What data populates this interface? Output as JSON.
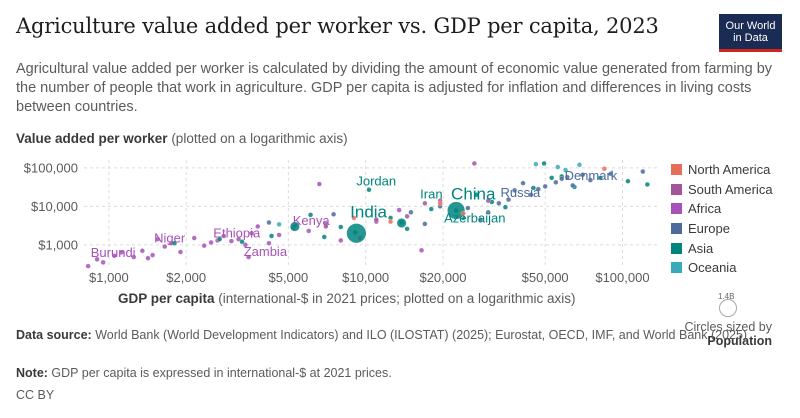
{
  "header": {
    "title": "Agriculture value added per worker vs. GDP per capita, 2023",
    "subtitle": "Agricultural value added per worker is calculated by dividing the amount of economic value generated from farming by the number of people that work in agriculture. GDP per capita is adjusted for inflation and differences in living costs between countries.",
    "logo_line1": "Our World",
    "logo_line2": "in Data"
  },
  "axes": {
    "y_label_bold": "Value added per worker",
    "y_label_rest": " (plotted on a logarithmic axis)",
    "x_label_bold": "GDP per capita",
    "x_label_rest": " (international-$ in 2021 prices; plotted on a logarithmic axis)"
  },
  "size_legend": {
    "value": "1.4B",
    "caption_line1": "Circles sized by",
    "caption_line2": "Population"
  },
  "footer": {
    "source_label": "Data source:",
    "source_text": " World Bank (World Development Indicators) and ILO (ILOSTAT) (2025); Eurostat, OECD, IMF, and World Bank (2025)",
    "note_label": "Note:",
    "note_text": " GDP per capita is expressed in international-$ at 2021 prices.",
    "license": "CC BY"
  },
  "chart_data": {
    "type": "scatter",
    "x_scale": "log",
    "y_scale": "log",
    "xlim": [
      800,
      140000
    ],
    "ylim": [
      250,
      160000
    ],
    "x_ticks": [
      {
        "v": 1000,
        "label": "$1,000"
      },
      {
        "v": 2000,
        "label": "$2,000"
      },
      {
        "v": 5000,
        "label": "$5,000"
      },
      {
        "v": 10000,
        "label": "$10,000"
      },
      {
        "v": 20000,
        "label": "$20,000"
      },
      {
        "v": 50000,
        "label": "$50,000"
      },
      {
        "v": 100000,
        "label": "$100,000"
      }
    ],
    "y_ticks": [
      {
        "v": 1000,
        "label": "$1,000"
      },
      {
        "v": 10000,
        "label": "$10,000"
      },
      {
        "v": 100000,
        "label": "$100,000"
      }
    ],
    "grid": true,
    "legend_position": "right",
    "colors": {
      "North America": "#e56e5a",
      "South America": "#a2559c",
      "Africa": "#a652ba",
      "Europe": "#4c6a9c",
      "Asia": "#00847e",
      "Oceania": "#38aaba"
    },
    "legend": [
      "North America",
      "South America",
      "Africa",
      "Europe",
      "Asia",
      "Oceania"
    ],
    "series": [
      {
        "name": "Africa",
        "points": [
          {
            "x": 830,
            "y": 280
          },
          {
            "x": 900,
            "y": 420
          },
          {
            "x": 950,
            "y": 350
          },
          {
            "x": 1050,
            "y": 520
          },
          {
            "x": 1120,
            "y": 640
          },
          {
            "x": 1250,
            "y": 480
          },
          {
            "x": 1350,
            "y": 700
          },
          {
            "x": 1420,
            "y": 450
          },
          {
            "x": 1480,
            "y": 540
          },
          {
            "x": 1550,
            "y": 1400
          },
          {
            "x": 1650,
            "y": 900
          },
          {
            "x": 1750,
            "y": 1100
          },
          {
            "x": 1900,
            "y": 650
          },
          {
            "x": 2150,
            "y": 1500
          },
          {
            "x": 2350,
            "y": 950
          },
          {
            "x": 2500,
            "y": 1150
          },
          {
            "x": 2650,
            "y": 1300
          },
          {
            "x": 2800,
            "y": 1700
          },
          {
            "x": 3000,
            "y": 1250
          },
          {
            "x": 3200,
            "y": 1400
          },
          {
            "x": 3400,
            "y": 1000
          },
          {
            "x": 3600,
            "y": 2000
          },
          {
            "x": 3800,
            "y": 3000
          },
          {
            "x": 4200,
            "y": 1100
          },
          {
            "x": 4600,
            "y": 1800
          },
          {
            "x": 5200,
            "y": 2600
          },
          {
            "x": 6000,
            "y": 2300
          },
          {
            "x": 7000,
            "y": 3500
          },
          {
            "x": 8000,
            "y": 1300
          },
          {
            "x": 9500,
            "y": 1500
          },
          {
            "x": 11000,
            "y": 4000
          },
          {
            "x": 13500,
            "y": 8000
          },
          {
            "x": 16500,
            "y": 720
          },
          {
            "x": 3500,
            "y": 480
          },
          {
            "x": 6600,
            "y": 38000
          }
        ]
      },
      {
        "name": "Asia",
        "points": [
          {
            "x": 1800,
            "y": 1100
          },
          {
            "x": 2700,
            "y": 1400
          },
          {
            "x": 3300,
            "y": 1200
          },
          {
            "x": 4300,
            "y": 1700
          },
          {
            "x": 5300,
            "y": 3200
          },
          {
            "x": 6100,
            "y": 6000
          },
          {
            "x": 6900,
            "y": 1600
          },
          {
            "x": 8000,
            "y": 2900
          },
          {
            "x": 9100,
            "y": 2100
          },
          {
            "x": 10300,
            "y": 27000
          },
          {
            "x": 12500,
            "y": 5000
          },
          {
            "x": 13800,
            "y": 3800
          },
          {
            "x": 14500,
            "y": 2600
          },
          {
            "x": 18000,
            "y": 8500
          },
          {
            "x": 22500,
            "y": 7800
          },
          {
            "x": 24000,
            "y": 5000
          },
          {
            "x": 27000,
            "y": 20000
          },
          {
            "x": 31000,
            "y": 13000
          },
          {
            "x": 35000,
            "y": 9500
          },
          {
            "x": 45000,
            "y": 30000
          },
          {
            "x": 49500,
            "y": 130000
          },
          {
            "x": 53000,
            "y": 55000
          },
          {
            "x": 58000,
            "y": 60000
          },
          {
            "x": 65000,
            "y": 32000
          },
          {
            "x": 82000,
            "y": 55000
          },
          {
            "x": 105000,
            "y": 45000
          },
          {
            "x": 125000,
            "y": 37000
          },
          {
            "x": 5300,
            "y": 3000,
            "s": 5
          },
          {
            "x": 9200,
            "y": 2000,
            "s": 10
          },
          {
            "x": 13800,
            "y": 3700,
            "s": 5
          },
          {
            "x": 22500,
            "y": 7800,
            "s": 9
          }
        ]
      },
      {
        "name": "Europe",
        "points": [
          {
            "x": 15000,
            "y": 7000
          },
          {
            "x": 17000,
            "y": 3500
          },
          {
            "x": 19500,
            "y": 10000
          },
          {
            "x": 25000,
            "y": 9000
          },
          {
            "x": 28000,
            "y": 4500
          },
          {
            "x": 30000,
            "y": 7000
          },
          {
            "x": 33000,
            "y": 12000
          },
          {
            "x": 36000,
            "y": 15000
          },
          {
            "x": 38000,
            "y": 26000
          },
          {
            "x": 41000,
            "y": 40000
          },
          {
            "x": 44000,
            "y": 20000
          },
          {
            "x": 47000,
            "y": 28000
          },
          {
            "x": 50000,
            "y": 33000
          },
          {
            "x": 55000,
            "y": 42000
          },
          {
            "x": 58000,
            "y": 52000
          },
          {
            "x": 61000,
            "y": 57000
          },
          {
            "x": 64000,
            "y": 35000
          },
          {
            "x": 70000,
            "y": 66000
          },
          {
            "x": 75000,
            "y": 48000
          },
          {
            "x": 90000,
            "y": 70000
          },
          {
            "x": 120000,
            "y": 80000
          },
          {
            "x": 4200,
            "y": 3800
          },
          {
            "x": 7500,
            "y": 6200
          }
        ]
      },
      {
        "name": "South America",
        "points": [
          {
            "x": 7000,
            "y": 3000
          },
          {
            "x": 11000,
            "y": 4500
          },
          {
            "x": 14500,
            "y": 5500
          },
          {
            "x": 17000,
            "y": 12000
          },
          {
            "x": 19500,
            "y": 14000
          },
          {
            "x": 26500,
            "y": 130000
          },
          {
            "x": 30000,
            "y": 14000
          }
        ]
      },
      {
        "name": "North America",
        "points": [
          {
            "x": 9000,
            "y": 5000
          },
          {
            "x": 12500,
            "y": 4000
          },
          {
            "x": 19500,
            "y": 12000
          },
          {
            "x": 24000,
            "y": 6500
          },
          {
            "x": 85000,
            "y": 95000
          }
        ]
      },
      {
        "name": "Oceania",
        "points": [
          {
            "x": 4600,
            "y": 3400
          },
          {
            "x": 56000,
            "y": 105000
          },
          {
            "x": 60000,
            "y": 88000
          },
          {
            "x": 68000,
            "y": 120000
          },
          {
            "x": 46000,
            "y": 125000
          }
        ]
      }
    ],
    "labels": [
      {
        "text": "Burundi",
        "x": 850,
        "y": 480,
        "region": "Africa",
        "size": 13
      },
      {
        "text": "Niger",
        "x": 1500,
        "y": 1150,
        "region": "Africa",
        "size": 13
      },
      {
        "text": "Ethiopia",
        "x": 2550,
        "y": 1550,
        "region": "Africa",
        "size": 13
      },
      {
        "text": "Zambia",
        "x": 3350,
        "y": 520,
        "region": "Africa",
        "size": 13
      },
      {
        "text": "Kenya",
        "x": 5200,
        "y": 3300,
        "region": "Africa",
        "size": 13
      },
      {
        "text": "India",
        "x": 8700,
        "y": 5200,
        "region": "Asia",
        "size": 17
      },
      {
        "text": "Jordan",
        "x": 9200,
        "y": 35000,
        "region": "Asia",
        "size": 13
      },
      {
        "text": "Iran",
        "x": 16300,
        "y": 16000,
        "region": "Asia",
        "size": 13
      },
      {
        "text": "China",
        "x": 21500,
        "y": 15000,
        "region": "Asia",
        "size": 17
      },
      {
        "text": "Azerbaijan",
        "x": 20200,
        "y": 3750,
        "region": "Asia",
        "size": 13
      },
      {
        "text": "Russia",
        "x": 33500,
        "y": 17500,
        "region": "Europe",
        "size": 13
      },
      {
        "text": "Denmark",
        "x": 59500,
        "y": 49000,
        "region": "Europe",
        "size": 13
      }
    ]
  }
}
